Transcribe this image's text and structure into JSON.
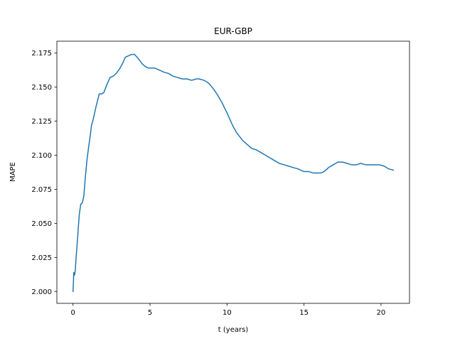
{
  "chart_data": {
    "type": "line",
    "title": "EUR-GBP",
    "xlabel": "t (years)",
    "ylabel": "MAPE",
    "xlim": [
      -1.05,
      21.85
    ],
    "ylim": [
      1.9913,
      2.1837
    ],
    "xticks": [
      0,
      5,
      10,
      15,
      20
    ],
    "yticks": [
      2.0,
      2.025,
      2.05,
      2.075,
      2.1,
      2.125,
      2.15,
      2.175
    ],
    "xtick_labels": [
      "0",
      "5",
      "10",
      "15",
      "20"
    ],
    "ytick_labels": [
      "2.000",
      "2.025",
      "2.050",
      "2.075",
      "2.100",
      "2.125",
      "2.150",
      "2.175"
    ],
    "grid": false,
    "series": [
      {
        "color": "#1f77b4",
        "x": [
          0.0,
          0.05,
          0.1,
          0.15,
          0.2,
          0.3,
          0.4,
          0.5,
          0.6,
          0.7,
          0.8,
          0.9,
          1.0,
          1.1,
          1.2,
          1.3,
          1.5,
          1.7,
          1.85,
          2.0,
          2.1,
          2.2,
          2.4,
          2.6,
          2.8,
          3.0,
          3.2,
          3.4,
          3.6,
          3.8,
          3.9,
          4.0,
          4.15,
          4.3,
          4.5,
          4.7,
          4.9,
          5.1,
          5.3,
          5.5,
          5.7,
          5.9,
          6.2,
          6.5,
          6.8,
          7.1,
          7.4,
          7.7,
          8.0,
          8.2,
          8.5,
          8.8,
          9.1,
          9.4,
          9.7,
          10.0,
          10.2,
          10.4,
          10.6,
          10.8,
          11.0,
          11.3,
          11.6,
          11.9,
          12.2,
          12.5,
          12.8,
          13.1,
          13.4,
          13.7,
          14.0,
          14.3,
          14.6,
          15.0,
          15.3,
          15.6,
          15.9,
          16.1,
          16.3,
          16.6,
          16.9,
          17.2,
          17.5,
          17.8,
          18.1,
          18.4,
          18.7,
          19.0,
          19.3,
          19.6,
          19.9,
          20.2,
          20.5,
          20.8
        ],
        "values": [
          2.0,
          2.014,
          2.012,
          2.016,
          2.025,
          2.04,
          2.056,
          2.064,
          2.065,
          2.07,
          2.084,
          2.096,
          2.105,
          2.113,
          2.122,
          2.126,
          2.136,
          2.145,
          2.145,
          2.146,
          2.149,
          2.152,
          2.157,
          2.158,
          2.16,
          2.163,
          2.167,
          2.172,
          2.173,
          2.174,
          2.174,
          2.174,
          2.172,
          2.17,
          2.167,
          2.165,
          2.164,
          2.164,
          2.164,
          2.163,
          2.162,
          2.161,
          2.16,
          2.158,
          2.157,
          2.156,
          2.156,
          2.155,
          2.156,
          2.156,
          2.155,
          2.153,
          2.149,
          2.144,
          2.138,
          2.131,
          2.126,
          2.121,
          2.117,
          2.114,
          2.111,
          2.108,
          2.105,
          2.104,
          2.102,
          2.1,
          2.098,
          2.096,
          2.094,
          2.093,
          2.092,
          2.091,
          2.09,
          2.088,
          2.088,
          2.087,
          2.087,
          2.087,
          2.088,
          2.091,
          2.093,
          2.095,
          2.095,
          2.094,
          2.093,
          2.093,
          2.094,
          2.093,
          2.093,
          2.093,
          2.093,
          2.092,
          2.09,
          2.089
        ]
      }
    ]
  }
}
